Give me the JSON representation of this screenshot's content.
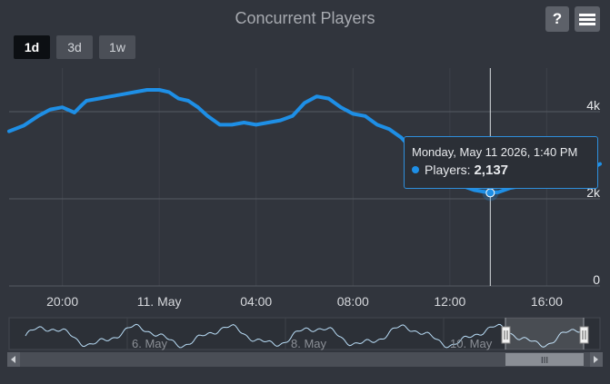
{
  "header": {
    "title": "Concurrent Players",
    "help_label": "?",
    "range_buttons": [
      "1d",
      "3d",
      "1w"
    ],
    "active_range": "1d"
  },
  "colors": {
    "background": "#31353d",
    "series": "#1e8fe6",
    "navigator_line": "#b9ddf7"
  },
  "tooltip": {
    "date": "Monday, May 11 2026, 1:40 PM",
    "series_label": "Players:",
    "value": "2,137"
  },
  "navigator": {
    "labels": [
      "6. May",
      "8. May",
      "10. May"
    ],
    "scrollbar_grip": "III"
  },
  "chart_data": {
    "type": "line",
    "title": "Concurrent Players",
    "x_unit": "hours relative to 00:00 on 11. May",
    "xlim": [
      -6.2,
      18.2
    ],
    "ylim": [
      0,
      5000
    ],
    "grid": true,
    "x_tick_labels": [
      "20:00",
      "11. May",
      "04:00",
      "08:00",
      "12:00",
      "16:00"
    ],
    "y_tick_labels": [
      "0",
      "2k",
      "4k"
    ],
    "hover": {
      "x": 13.67,
      "y": 2137
    },
    "series": [
      {
        "name": "Players",
        "x": [
          -6.2,
          -5.6,
          -5.0,
          -4.5,
          -4.0,
          -3.5,
          -3.2,
          -3.0,
          -2.5,
          -2.0,
          -1.5,
          -1.0,
          -0.5,
          0.0,
          0.4,
          0.8,
          1.2,
          1.6,
          2.0,
          2.5,
          3.0,
          3.5,
          4.0,
          4.5,
          5.0,
          5.5,
          6.0,
          6.5,
          7.0,
          7.5,
          8.0,
          8.5,
          9.0,
          9.5,
          10.0,
          10.5,
          11.0,
          11.5,
          12.0,
          12.5,
          13.0,
          13.67,
          14.0,
          14.5,
          15.0,
          15.5,
          16.0,
          16.5,
          17.0,
          17.5,
          18.2
        ],
        "y": [
          3550,
          3680,
          3900,
          4050,
          4100,
          3980,
          4150,
          4250,
          4300,
          4350,
          4400,
          4450,
          4500,
          4500,
          4450,
          4300,
          4250,
          4100,
          3900,
          3700,
          3700,
          3750,
          3700,
          3750,
          3800,
          3900,
          4200,
          4350,
          4300,
          4100,
          3950,
          3900,
          3700,
          3600,
          3400,
          3100,
          2800,
          2650,
          2450,
          2300,
          2200,
          2137,
          2150,
          2250,
          2300,
          2350,
          2400,
          2450,
          2500,
          2600,
          2800
        ]
      }
    ]
  }
}
